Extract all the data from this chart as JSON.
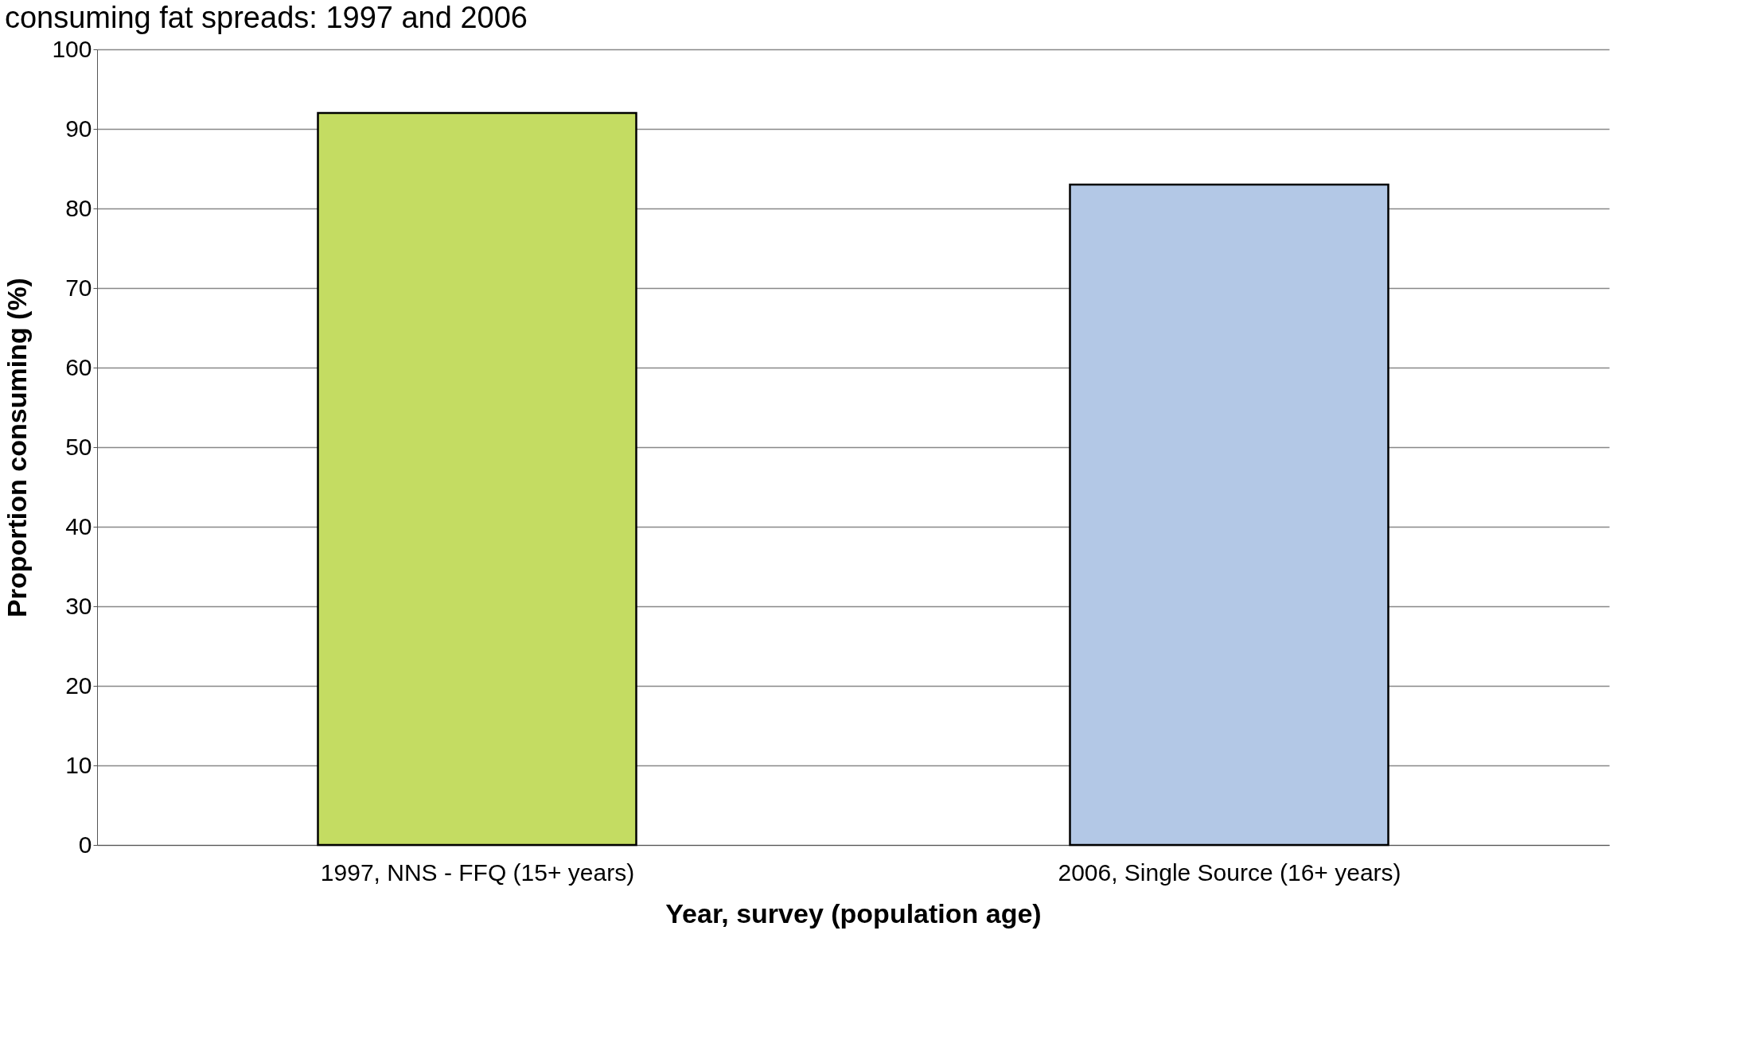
{
  "chart_data": {
    "type": "bar",
    "title": "consuming fat spreads: 1997 and 2006",
    "xlabel": "Year, survey (population age)",
    "ylabel": "Proportion consuming (%)",
    "categories": [
      "1997, NNS - FFQ (15+ years)",
      "2006, Single Source (16+ years)"
    ],
    "values": [
      92,
      83
    ],
    "colors": [
      "#c4dc62",
      "#b3c8e6"
    ],
    "ylim": [
      0,
      100
    ],
    "yticks": [
      0,
      10,
      20,
      30,
      40,
      50,
      60,
      70,
      80,
      90,
      100
    ],
    "grid": "y"
  }
}
